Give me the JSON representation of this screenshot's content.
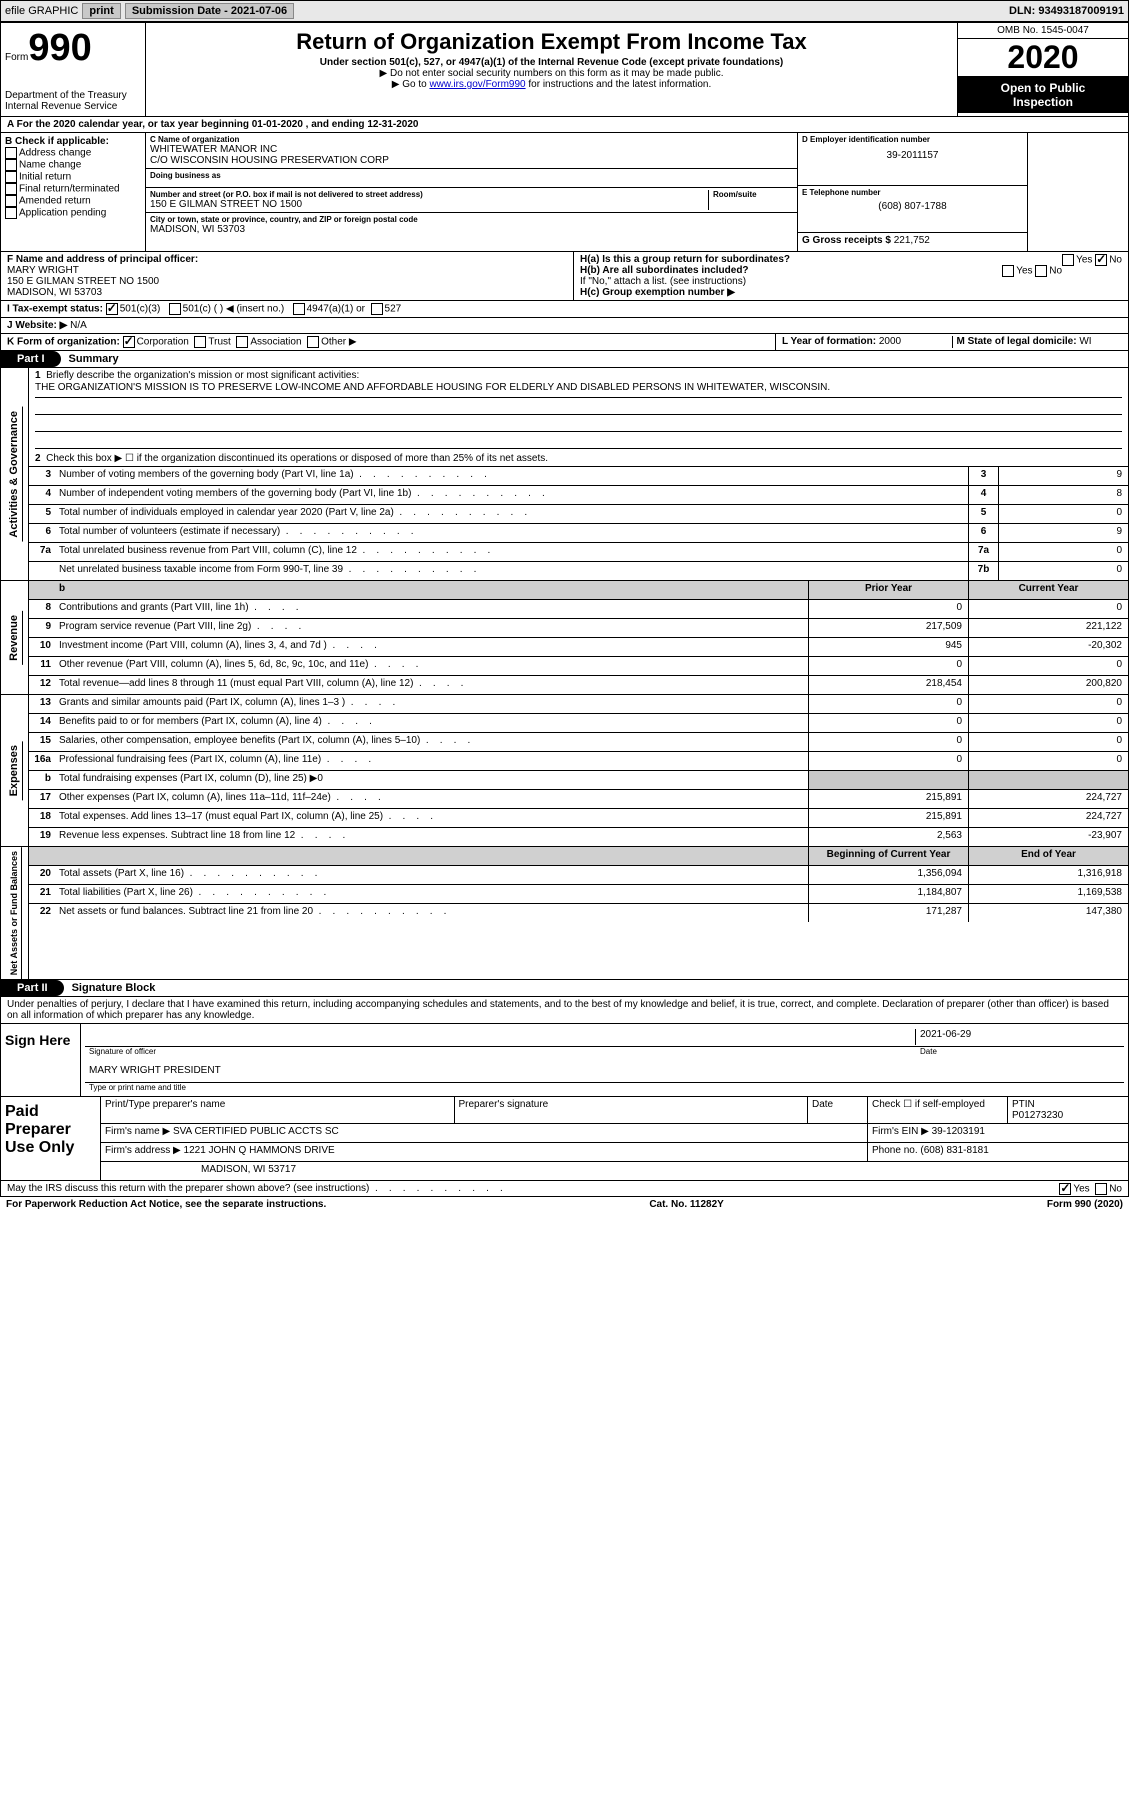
{
  "colors": {
    "black": "#000000",
    "white": "#ffffff",
    "gray_shade": "#c8c8c8",
    "gray_hdr": "#d0d0d0",
    "link": "#0000cc"
  },
  "topbar": {
    "efile": "efile GRAPHIC",
    "print": "print",
    "subdate_lbl": "Submission Date - ",
    "subdate": "2021-07-06",
    "dln_lbl": "DLN: ",
    "dln": "93493187009191"
  },
  "header": {
    "form_word": "Form",
    "form_num": "990",
    "dept": "Department of the Treasury",
    "irs": "Internal Revenue Service",
    "title": "Return of Organization Exempt From Income Tax",
    "sub": "Under section 501(c), 527, or 4947(a)(1) of the Internal Revenue Code (except private foundations)",
    "nossl": "▶ Do not enter social security numbers on this form as it may be made public.",
    "goto_pre": "▶ Go to ",
    "goto_link": "www.irs.gov/Form990",
    "goto_post": " for instructions and the latest information.",
    "omb": "OMB No. 1545-0047",
    "year": "2020",
    "public1": "Open to Public",
    "public2": "Inspection"
  },
  "lineA": "A For the 2020 calendar year, or tax year beginning 01-01-2020   , and ending 12-31-2020",
  "boxB": {
    "hdr": "B Check if applicable:",
    "opts": [
      "Address change",
      "Name change",
      "Initial return",
      "Final return/terminated",
      "Amended return",
      "Application pending"
    ]
  },
  "boxC": {
    "name_lbl": "C Name of organization",
    "name": "WHITEWATER MANOR INC",
    "care": "C/O WISCONSIN HOUSING PRESERVATION CORP",
    "dba_lbl": "Doing business as",
    "addr_lbl": "Number and street (or P.O. box if mail is not delivered to street address)",
    "room_lbl": "Room/suite",
    "addr": "150 E GILMAN STREET NO 1500",
    "city_lbl": "City or town, state or province, country, and ZIP or foreign postal code",
    "city": "MADISON, WI  53703"
  },
  "boxD": {
    "lbl": "D Employer identification number",
    "val": "39-2011157"
  },
  "boxE": {
    "lbl": "E Telephone number",
    "val": "(608) 807-1788"
  },
  "boxG": {
    "lbl": "G Gross receipts $ ",
    "val": "221,752"
  },
  "boxF": {
    "lbl": "F  Name and address of principal officer:",
    "name": "MARY WRIGHT",
    "addr1": "150 E GILMAN STREET NO 1500",
    "addr2": "MADISON, WI  53703"
  },
  "boxH": {
    "ha": "H(a)  Is this a group return for subordinates?",
    "ha_ans_yes": "Yes",
    "ha_ans_no": "No",
    "hb": "H(b)  Are all subordinates included?",
    "hb_note": "If \"No,\" attach a list. (see instructions)",
    "hc": "H(c)  Group exemption number ▶"
  },
  "boxI": {
    "lbl": "I   Tax-exempt status:",
    "o1": "501(c)(3)",
    "o2": "501(c) (   ) ◀ (insert no.)",
    "o3": "4947(a)(1) or",
    "o4": "527"
  },
  "boxJ": {
    "lbl": "J   Website: ▶",
    "val": "N/A"
  },
  "boxK": {
    "lbl": "K Form of organization:",
    "o1": "Corporation",
    "o2": "Trust",
    "o3": "Association",
    "o4": "Other ▶"
  },
  "boxL": {
    "lbl": "L Year of formation: ",
    "val": "2000"
  },
  "boxM": {
    "lbl": "M State of legal domicile: ",
    "val": "WI"
  },
  "part1": {
    "hdr": "Part I",
    "title": "Summary",
    "side_act": "Activities & Governance",
    "side_rev": "Revenue",
    "side_exp": "Expenses",
    "side_net": "Net Assets or Fund Balances",
    "l1": "Briefly describe the organization's mission or most significant activities:",
    "mission": "THE ORGANIZATION'S MISSION IS TO PRESERVE LOW-INCOME AND AFFORDABLE HOUSING FOR ELDERLY AND DISABLED PERSONS IN WHITEWATER, WISCONSIN.",
    "l2": "Check this box ▶ ☐  if the organization discontinued its operations or disposed of more than 25% of its net assets.",
    "prior_hdr": "Prior Year",
    "curr_hdr": "Current Year",
    "lines_num": [
      {
        "n": "3",
        "t": "Number of voting members of the governing body (Part VI, line 1a)",
        "c": "3",
        "v": "9"
      },
      {
        "n": "4",
        "t": "Number of independent voting members of the governing body (Part VI, line 1b)",
        "c": "4",
        "v": "8"
      },
      {
        "n": "5",
        "t": "Total number of individuals employed in calendar year 2020 (Part V, line 2a)",
        "c": "5",
        "v": "0"
      },
      {
        "n": "6",
        "t": "Total number of volunteers (estimate if necessary)",
        "c": "6",
        "v": "9"
      },
      {
        "n": "7a",
        "t": "Total unrelated business revenue from Part VIII, column (C), line 12",
        "c": "7a",
        "v": "0"
      },
      {
        "n": "",
        "t": "Net unrelated business taxable income from Form 990-T, line 39",
        "c": "7b",
        "v": "0"
      }
    ],
    "lines_rev": [
      {
        "n": "8",
        "t": "Contributions and grants (Part VIII, line 1h)",
        "p": "0",
        "cu": "0"
      },
      {
        "n": "9",
        "t": "Program service revenue (Part VIII, line 2g)",
        "p": "217,509",
        "cu": "221,122"
      },
      {
        "n": "10",
        "t": "Investment income (Part VIII, column (A), lines 3, 4, and 7d )",
        "p": "945",
        "cu": "-20,302"
      },
      {
        "n": "11",
        "t": "Other revenue (Part VIII, column (A), lines 5, 6d, 8c, 9c, 10c, and 11e)",
        "p": "0",
        "cu": "0"
      },
      {
        "n": "12",
        "t": "Total revenue—add lines 8 through 11 (must equal Part VIII, column (A), line 12)",
        "p": "218,454",
        "cu": "200,820"
      }
    ],
    "lines_exp": [
      {
        "n": "13",
        "t": "Grants and similar amounts paid (Part IX, column (A), lines 1–3 )",
        "p": "0",
        "cu": "0"
      },
      {
        "n": "14",
        "t": "Benefits paid to or for members (Part IX, column (A), line 4)",
        "p": "0",
        "cu": "0"
      },
      {
        "n": "15",
        "t": "Salaries, other compensation, employee benefits (Part IX, column (A), lines 5–10)",
        "p": "0",
        "cu": "0"
      },
      {
        "n": "16a",
        "t": "Professional fundraising fees (Part IX, column (A), line 11e)",
        "p": "0",
        "cu": "0"
      },
      {
        "n": "b",
        "t": "Total fundraising expenses (Part IX, column (D), line 25) ▶0",
        "p": "",
        "cu": "",
        "shade": true
      },
      {
        "n": "17",
        "t": "Other expenses (Part IX, column (A), lines 11a–11d, 11f–24e)",
        "p": "215,891",
        "cu": "224,727"
      },
      {
        "n": "18",
        "t": "Total expenses. Add lines 13–17 (must equal Part IX, column (A), line 25)",
        "p": "215,891",
        "cu": "224,727"
      },
      {
        "n": "19",
        "t": "Revenue less expenses. Subtract line 18 from line 12",
        "p": "2,563",
        "cu": "-23,907"
      }
    ],
    "net_hdr_begin": "Beginning of Current Year",
    "net_hdr_end": "End of Year",
    "lines_net": [
      {
        "n": "20",
        "t": "Total assets (Part X, line 16)",
        "p": "1,356,094",
        "cu": "1,316,918"
      },
      {
        "n": "21",
        "t": "Total liabilities (Part X, line 26)",
        "p": "1,184,807",
        "cu": "1,169,538"
      },
      {
        "n": "22",
        "t": "Net assets or fund balances. Subtract line 21 from line 20",
        "p": "171,287",
        "cu": "147,380"
      }
    ]
  },
  "part2": {
    "hdr": "Part II",
    "title": "Signature Block",
    "decl": "Under penalties of perjury, I declare that I have examined this return, including accompanying schedules and statements, and to the best of my knowledge and belief, it is true, correct, and complete. Declaration of preparer (other than officer) is based on all information of which preparer has any knowledge.",
    "sign_here": "Sign Here",
    "sig_officer": "Signature of officer",
    "date_lbl": "Date",
    "date_val": "2021-06-29",
    "name_title": "MARY WRIGHT  PRESIDENT",
    "name_title_lbl": "Type or print name and title",
    "paid_lbl": "Paid Preparer Use Only",
    "prep_name_lbl": "Print/Type preparer's name",
    "prep_sig_lbl": "Preparer's signature",
    "prep_date_lbl": "Date",
    "check_self": "Check ☐ if self-employed",
    "ptin_lbl": "PTIN",
    "ptin": "P01273230",
    "firm_name_lbl": "Firm's name   ▶",
    "firm_name": "SVA CERTIFIED PUBLIC ACCTS SC",
    "firm_ein_lbl": "Firm's EIN ▶",
    "firm_ein": "39-1203191",
    "firm_addr_lbl": "Firm's address ▶",
    "firm_addr1": "1221 JOHN Q HAMMONS DRIVE",
    "firm_addr2": "MADISON, WI  53717",
    "phone_lbl": "Phone no. ",
    "phone": "(608) 831-8181",
    "discuss": "May the IRS discuss this return with the preparer shown above? (see instructions)",
    "yes": "Yes",
    "no": "No"
  },
  "footer": {
    "pra": "For Paperwork Reduction Act Notice, see the separate instructions.",
    "cat": "Cat. No. 11282Y",
    "form": "Form 990 (2020)"
  }
}
